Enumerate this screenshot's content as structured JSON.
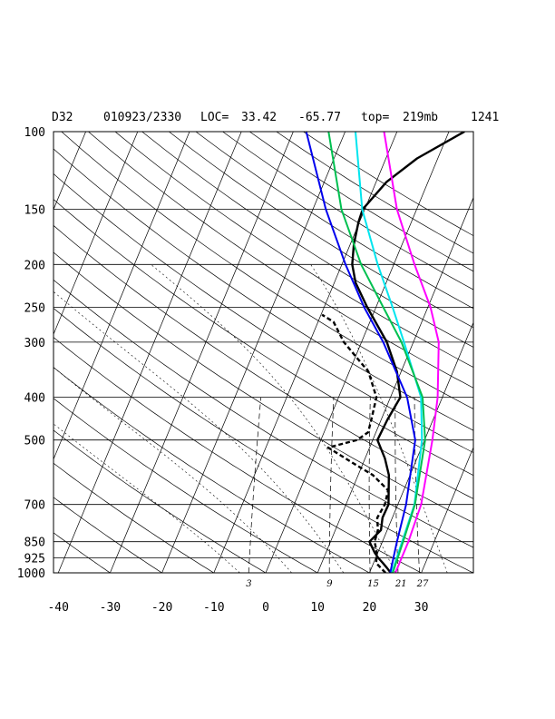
{
  "header": {
    "station": "D32",
    "datetime": "010923/2330",
    "loc_label": "LOC=",
    "lat": "33.42",
    "lon": "-65.77",
    "top_label": "top=",
    "top_value": "219mb",
    "code": "1241"
  },
  "chart_data": {
    "type": "line",
    "title": "",
    "xlabel": "",
    "ylabel": "",
    "xlim": [
      -40,
      40
    ],
    "ylim": [
      1000,
      100
    ],
    "y_scale": "log",
    "grid": true,
    "pressure_ticks": [
      100,
      150,
      200,
      250,
      300,
      400,
      500,
      700,
      850,
      925,
      1000
    ],
    "temperature_ticks": [
      -40,
      -30,
      -20,
      -10,
      0,
      10,
      20,
      30
    ],
    "mixing_ratio_labels": [
      3,
      9,
      15,
      21,
      27
    ],
    "series": [
      {
        "key": "temperature",
        "color": "#000000",
        "dash": false,
        "points": [
          [
            1000,
            24.1
          ],
          [
            975,
            23
          ],
          [
            950,
            21.8
          ],
          [
            925,
            20.5
          ],
          [
            900,
            19.4
          ],
          [
            850,
            17.5
          ],
          [
            800,
            18.8
          ],
          [
            750,
            18.1
          ],
          [
            700,
            18.2
          ],
          [
            650,
            17.1
          ],
          [
            600,
            15.9
          ],
          [
            550,
            13.8
          ],
          [
            500,
            10.9
          ],
          [
            450,
            11.2
          ],
          [
            400,
            11.9
          ],
          [
            350,
            9.2
          ],
          [
            300,
            4.9
          ],
          [
            250,
            -1.7
          ],
          [
            220,
            -5.9
          ],
          [
            200,
            -8
          ],
          [
            180,
            -9.3
          ],
          [
            160,
            -10.2
          ],
          [
            150,
            -10.4
          ],
          [
            130,
            -8
          ],
          [
            115,
            -4
          ],
          [
            100,
            3
          ]
        ]
      },
      {
        "key": "dewpoint",
        "color": "#000000",
        "dash": true,
        "points": [
          [
            1000,
            23.1
          ],
          [
            950,
            20.5
          ],
          [
            900,
            19.8
          ],
          [
            850,
            18.5
          ],
          [
            800,
            18.2
          ],
          [
            750,
            17.1
          ],
          [
            700,
            17.5
          ],
          [
            650,
            17
          ],
          [
            600,
            12.8
          ],
          [
            560,
            7.5
          ],
          [
            520,
            2
          ],
          [
            500,
            7
          ],
          [
            480,
            8.5
          ],
          [
            450,
            8.1
          ],
          [
            400,
            7.3
          ],
          [
            350,
            3.7
          ],
          [
            300,
            -3.4
          ],
          [
            270,
            -7
          ],
          [
            260,
            -9.8
          ]
        ]
      },
      {
        "key": "magenta",
        "color": "#ff00ff",
        "dash": false,
        "points": [
          [
            1000,
            25
          ],
          [
            850,
            25
          ],
          [
            700,
            24.5
          ],
          [
            500,
            21.5
          ],
          [
            400,
            19.1
          ],
          [
            300,
            14.9
          ],
          [
            250,
            10.5
          ],
          [
            200,
            4
          ],
          [
            150,
            -3.8
          ],
          [
            100,
            -12.5
          ]
        ]
      },
      {
        "key": "cyan",
        "color": "#00e5ee",
        "dash": false,
        "points": [
          [
            1000,
            24.3
          ],
          [
            850,
            23.8
          ],
          [
            700,
            23.2
          ],
          [
            500,
            19.5
          ],
          [
            400,
            15.9
          ],
          [
            300,
            8.2
          ],
          [
            250,
            3.2
          ],
          [
            200,
            -3.1
          ],
          [
            150,
            -10.5
          ],
          [
            100,
            -18
          ]
        ]
      },
      {
        "key": "green",
        "color": "#00c050",
        "dash": false,
        "points": [
          [
            1000,
            24.5
          ],
          [
            850,
            24
          ],
          [
            700,
            23.3
          ],
          [
            500,
            20.1
          ],
          [
            400,
            16.2
          ],
          [
            300,
            7.7
          ],
          [
            250,
            1.4
          ],
          [
            200,
            -6.3
          ],
          [
            150,
            -14.5
          ],
          [
            100,
            -23.2
          ]
        ]
      },
      {
        "key": "blue",
        "color": "#0000ee",
        "dash": false,
        "points": [
          [
            1000,
            24
          ],
          [
            850,
            22.8
          ],
          [
            700,
            21.6
          ],
          [
            500,
            18.2
          ],
          [
            400,
            13.2
          ],
          [
            300,
            4.2
          ],
          [
            250,
            -2.3
          ],
          [
            200,
            -9.3
          ],
          [
            150,
            -17.5
          ],
          [
            100,
            -27.5
          ]
        ]
      }
    ]
  }
}
